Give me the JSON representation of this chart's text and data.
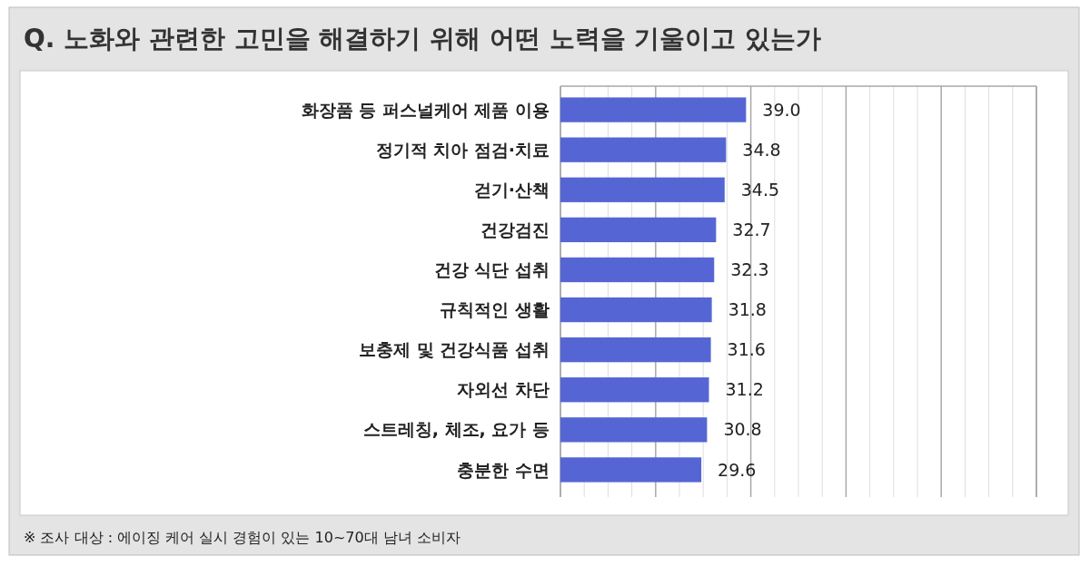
{
  "chart_data": {
    "type": "bar",
    "orientation": "horizontal",
    "title": "Q. 노화와 관련한 고민을 해결하기 위해 어떤 노력을 기울이고 있는가",
    "categories": [
      "화장품 등 퍼스널케어 제품 이용",
      "정기적 치아 점검·치료",
      "걷기·산책",
      "건강검진",
      "건강 식단 섭취",
      "규칙적인 생활",
      "보충제 및 건강식품 섭취",
      "자외선 차단",
      "스트레칭, 체조, 요가 등",
      "충분한 수면"
    ],
    "values": [
      39.0,
      34.8,
      34.5,
      32.7,
      32.3,
      31.8,
      31.6,
      31.2,
      30.8,
      29.6
    ],
    "color": "#5566d4",
    "value_labels": [
      "39.0",
      "34.8",
      "34.5",
      "32.7",
      "32.3",
      "31.8",
      "31.6",
      "31.2",
      "30.8",
      "29.6"
    ],
    "grid": "x",
    "tick_labels": "y",
    "xlim": [
      0,
      100
    ],
    "xticks": [
      {
        "value": 0,
        "label": null
      },
      {
        "value": 5,
        "label": null
      },
      {
        "value": 10,
        "label": null
      },
      {
        "value": 15,
        "label": null
      },
      {
        "value": 20,
        "label": null
      },
      {
        "value": 25,
        "label": null
      },
      {
        "value": 30,
        "label": null
      },
      {
        "value": 35,
        "label": null
      },
      {
        "value": 40,
        "label": null
      },
      {
        "value": 45,
        "label": null
      },
      {
        "value": 50,
        "label": null
      },
      {
        "value": 55,
        "label": null
      },
      {
        "value": 60,
        "label": null
      },
      {
        "value": 65,
        "label": null
      },
      {
        "value": 70,
        "label": null
      },
      {
        "value": 75,
        "label": null
      },
      {
        "value": 80,
        "label": null
      },
      {
        "value": 85,
        "label": null
      },
      {
        "value": 90,
        "label": null
      },
      {
        "value": 95,
        "label": null
      },
      {
        "value": 100,
        "label": null
      }
    ],
    "annotations": [
      "※ 조사 대상 : 에이징 케어 실시 경험이 있는 10~70대 남녀 소비자"
    ]
  }
}
